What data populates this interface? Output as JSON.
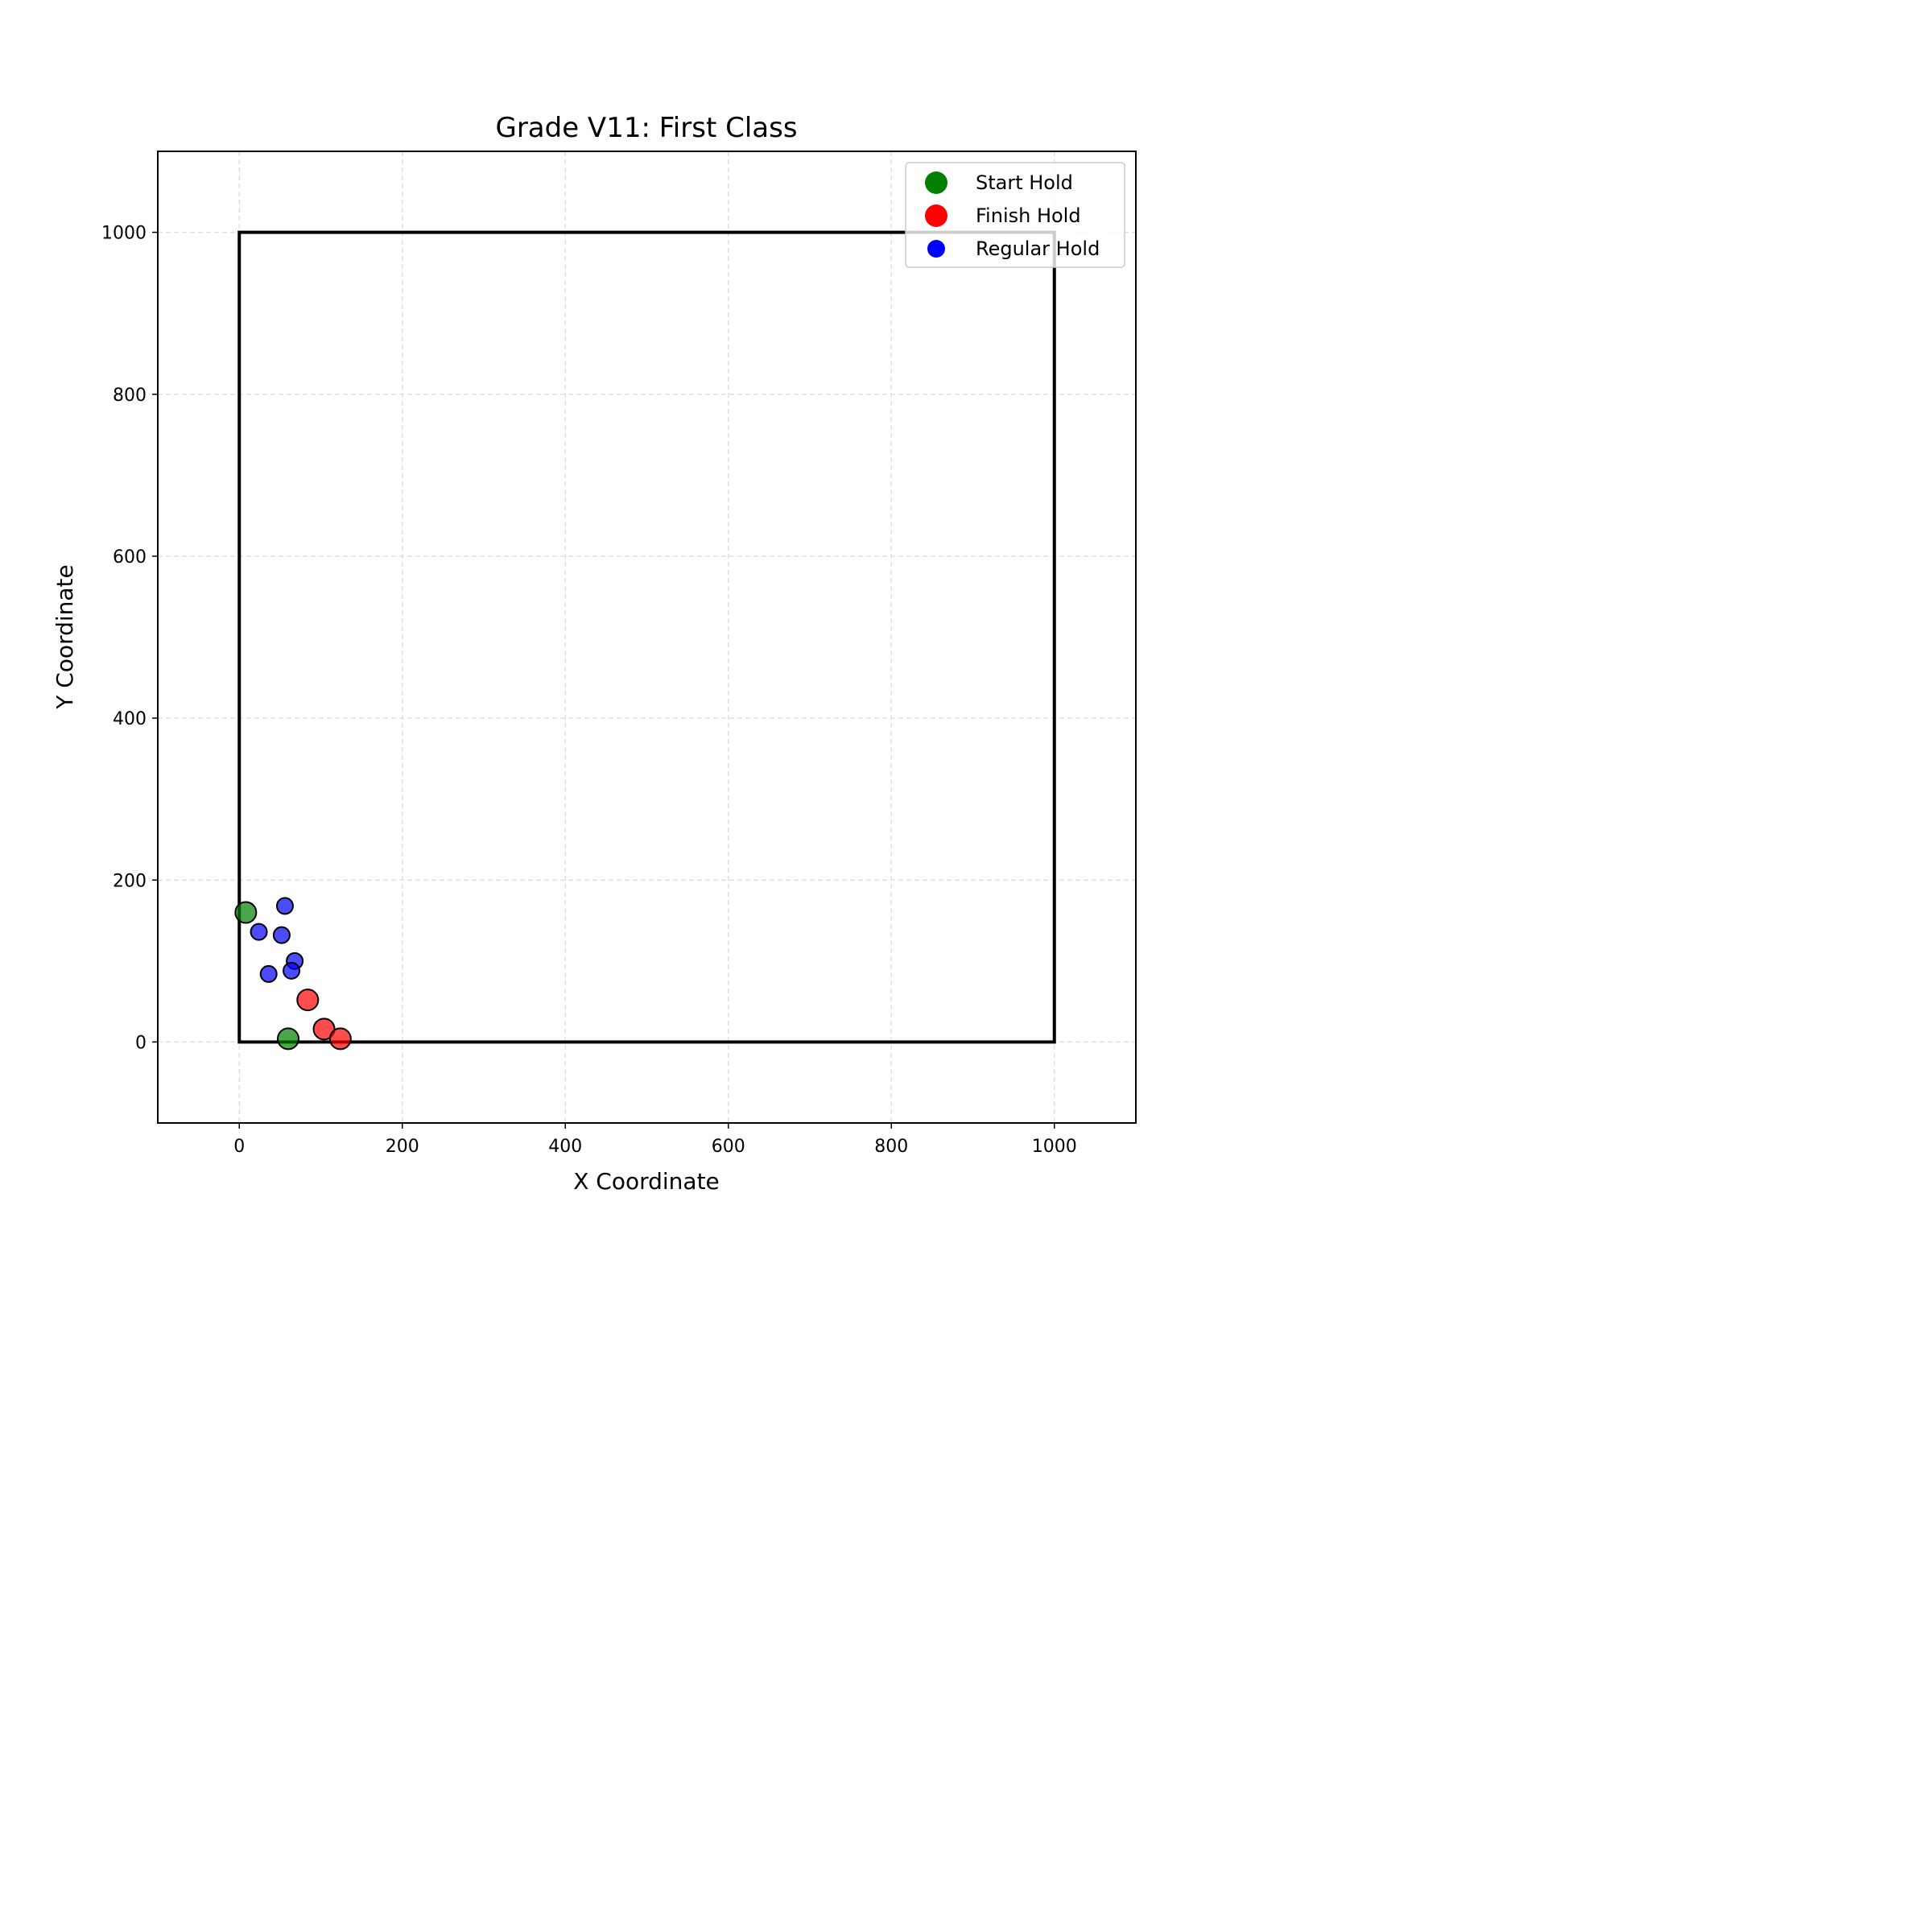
{
  "chart_data": {
    "type": "scatter",
    "title": "Grade V11: First Class",
    "xlabel": "X Coordinate",
    "ylabel": "Y Coordinate",
    "xlim": [
      -100,
      1100
    ],
    "ylim": [
      -100,
      1100
    ],
    "xticks": [
      0,
      200,
      400,
      600,
      800,
      1000
    ],
    "yticks": [
      0,
      200,
      400,
      600,
      800,
      1000
    ],
    "grid": true,
    "legend_position": "top-right",
    "wall_outline": {
      "x_min": 0,
      "x_max": 1000,
      "y_min": 0,
      "y_max": 1000
    },
    "series": [
      {
        "name": "Start Hold",
        "color": "#008000",
        "points": [
          {
            "x": 8,
            "y": 160
          },
          {
            "x": 60,
            "y": 4
          }
        ]
      },
      {
        "name": "Finish Hold",
        "color": "#ff0000",
        "points": [
          {
            "x": 84,
            "y": 52
          },
          {
            "x": 104,
            "y": 16
          },
          {
            "x": 124,
            "y": 4
          }
        ]
      },
      {
        "name": "Regular Hold",
        "color": "#0000ff",
        "points": [
          {
            "x": 56,
            "y": 168
          },
          {
            "x": 24,
            "y": 136
          },
          {
            "x": 52,
            "y": 132
          },
          {
            "x": 68,
            "y": 100
          },
          {
            "x": 64,
            "y": 88
          },
          {
            "x": 36,
            "y": 84
          }
        ]
      }
    ]
  }
}
